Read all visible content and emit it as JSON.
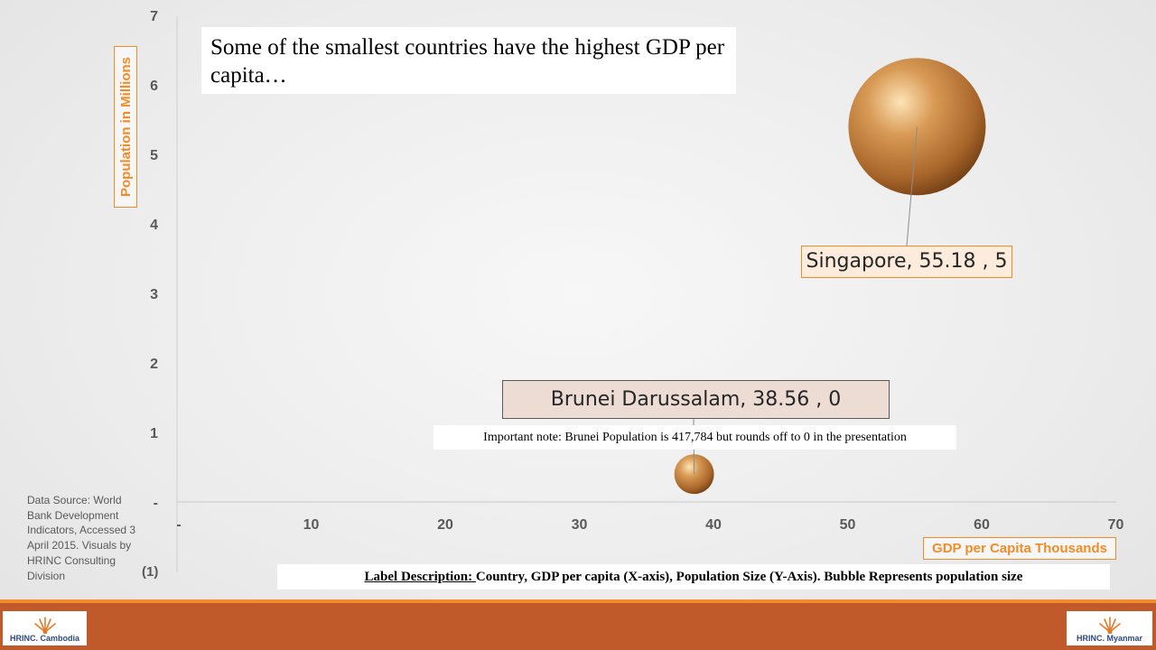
{
  "title": "Some of the smallest countries have the highest GDP per capita…",
  "chart_data": {
    "type": "scatter",
    "x_axis": {
      "label": "GDP per Capita Thousands",
      "range": [
        0,
        70
      ],
      "ticks": [
        0,
        10,
        20,
        30,
        40,
        50,
        60,
        70
      ],
      "tick_labels": [
        "-",
        "10",
        "20",
        "30",
        "40",
        "50",
        "60",
        "70"
      ]
    },
    "y_axis": {
      "label": "Population in Millions",
      "range": [
        -1,
        7
      ],
      "ticks": [
        0,
        1,
        2,
        3,
        4,
        5,
        6,
        7
      ],
      "tick_labels": [
        "-",
        "1",
        "2",
        "3",
        "4",
        "5",
        "6",
        "7"
      ],
      "extra_label": "(1)"
    },
    "points": [
      {
        "country": "Singapore",
        "x": 55.18,
        "y": 5,
        "y_plot": 5.4,
        "population_millions": 5,
        "label": "Singapore,  55.18 ,  5"
      },
      {
        "country": "Brunei Darussalam",
        "x": 38.56,
        "y": 0,
        "y_plot": 0.4,
        "population_millions": 0.417784,
        "label": "Brunei Darussalam,  38.56 ,  0"
      }
    ],
    "bubble_color": "#c8813e",
    "grid": false,
    "legend": "none"
  },
  "note": "Important note:  Brunei Population is 417,784 but rounds off to 0 in the presentation",
  "data_source": "Data Source:  World Bank Development Indicators, Accessed 3 April 2015.  Visuals by HRINC Consulting Division",
  "label_description": {
    "heading": "Label Description: ",
    "text": " Country, GDP per capita (X-axis), Population Size (Y-Axis).  Bubble Represents population size"
  },
  "logos": {
    "left": "HRINC. Cambodia",
    "right": "HRINC. Myanmar"
  },
  "colors": {
    "accent": "#f28c28",
    "footer": "#c05a2a",
    "bubble": "#c8813e"
  }
}
